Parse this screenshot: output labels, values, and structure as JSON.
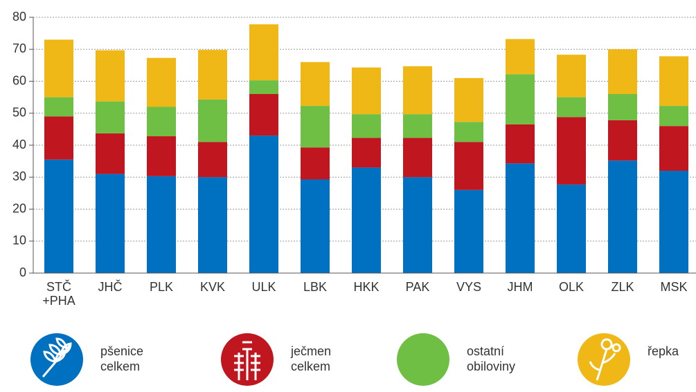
{
  "chart_data": {
    "type": "stacked-bar",
    "categories": [
      "STČ +PHA",
      "JHČ",
      "PLK",
      "KVK",
      "ULK",
      "LBK",
      "HKK",
      "PAK",
      "VYS",
      "JHM",
      "OLK",
      "ZLK",
      "MSK"
    ],
    "series": [
      {
        "name": "pšenice celkem",
        "color": "#0070c0",
        "values": [
          35.5,
          31,
          30.3,
          30,
          43,
          29.3,
          33,
          30,
          26,
          34.3,
          27.7,
          35.2,
          32
        ]
      },
      {
        "name": "ječmen celkem",
        "color": "#c0161f",
        "values": [
          13.5,
          12.7,
          12.5,
          11,
          13,
          10,
          9.3,
          12.3,
          15,
          12.2,
          21.1,
          12.6,
          14
        ]
      },
      {
        "name": "ostatní obiloviny",
        "color": "#6fbf44",
        "values": [
          6,
          10,
          9.2,
          13.3,
          4.3,
          13,
          7.4,
          7.4,
          6.3,
          15.7,
          6.2,
          8.2,
          6.3
        ]
      },
      {
        "name": "řepka",
        "color": "#f0b816",
        "values": [
          18,
          16,
          15.3,
          15.5,
          17.5,
          13.7,
          14.6,
          15,
          13.7,
          11,
          13.3,
          14,
          15.5
        ]
      }
    ],
    "ylim": [
      0,
      80
    ],
    "yticks": [
      0,
      10,
      20,
      30,
      40,
      50,
      60,
      70,
      80
    ],
    "grid": true
  }
}
